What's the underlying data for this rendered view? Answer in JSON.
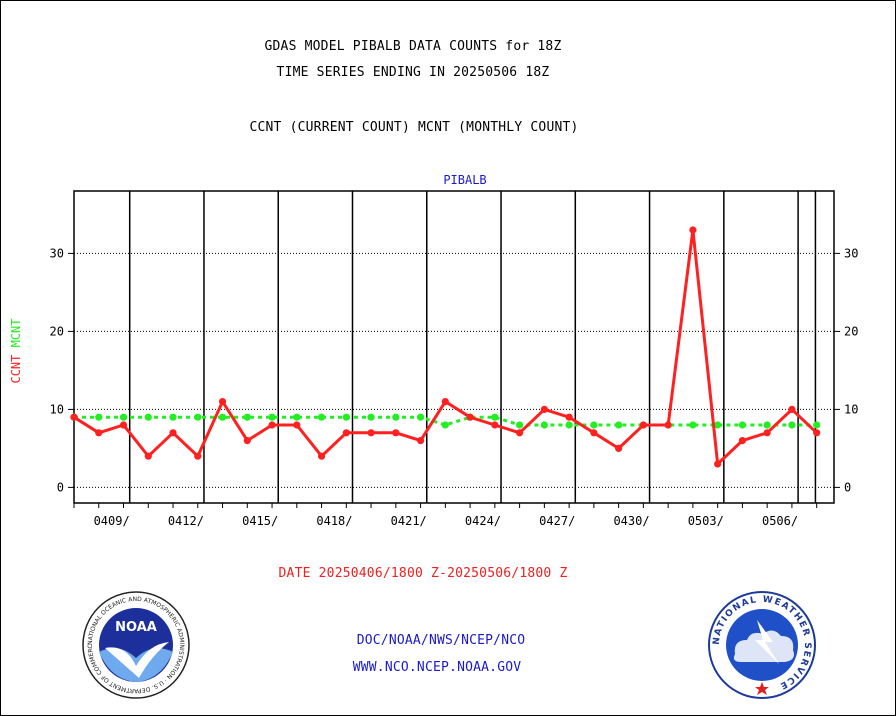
{
  "header": {
    "title1": "GDAS MODEL PIBALB DATA COUNTS for 18Z",
    "title2": "TIME SERIES ENDING IN 20250506 18Z",
    "subtitle": "CCNT (CURRENT COUNT) MCNT (MONTHLY COUNT)"
  },
  "footer": {
    "date_range": "DATE 20250406/1800 Z-20250506/1800 Z",
    "org_line": "DOC/NOAA/NWS/NCEP/NCO",
    "url_line": "WWW.NCO.NCEP.NOAA.GOV"
  },
  "logos": {
    "noaa": {
      "text": "NOAA",
      "ring_text": "NATIONAL OCEANIC AND ATMOSPHERIC ADMINISTRATION · U.S. DEPARTMENT OF COMMERCE"
    },
    "nws": {
      "ring_text": "NATIONAL WEATHER SERVICE"
    }
  },
  "colors": {
    "ccnt": "#ff2020",
    "mcnt": "#22ee22",
    "title": "#000000",
    "date": "#ee2020",
    "link": "#1a1acc",
    "plot_title": "#1a1acc"
  },
  "chart_data": {
    "type": "line",
    "title": "PIBALB",
    "ylabel_parts": [
      "CCNT",
      "MCNT"
    ],
    "ylim": [
      -2,
      38
    ],
    "yticks": [
      0,
      10,
      20,
      30
    ],
    "grid": true,
    "xlim": [
      0,
      30.7
    ],
    "x_tick_labels": [
      "0409/",
      "0412/",
      "0415/",
      "0418/",
      "0421/",
      "0424/",
      "0427/",
      "0430/",
      "0503/",
      "0506/"
    ],
    "x_tick_positions": [
      2.25,
      5.25,
      8.25,
      11.25,
      14.25,
      17.25,
      20.25,
      23.25,
      26.25,
      29.25
    ],
    "x_major_lines": [
      2.25,
      5.25,
      8.25,
      11.25,
      14.25,
      17.25,
      20.25,
      23.25,
      26.25,
      29.25,
      29.95
    ],
    "series": [
      {
        "name": "CCNT",
        "x": [
          0,
          1,
          2,
          3,
          4,
          5,
          6,
          7,
          8,
          9,
          10,
          11,
          12,
          13,
          14,
          15,
          16,
          17,
          18,
          19,
          20,
          21,
          22,
          23,
          24,
          25,
          26,
          27,
          28,
          29,
          30
        ],
        "values": [
          9,
          7,
          8,
          4,
          7,
          4,
          11,
          6,
          8,
          8,
          4,
          7,
          7,
          7,
          6,
          11,
          9,
          8,
          7,
          10,
          9,
          7,
          5,
          8,
          8,
          33,
          3,
          6,
          7,
          10,
          7
        ]
      },
      {
        "name": "MCNT",
        "x": [
          0,
          1,
          2,
          3,
          4,
          5,
          6,
          7,
          8,
          9,
          10,
          11,
          12,
          13,
          14,
          15,
          16,
          17,
          18,
          19,
          20,
          21,
          22,
          23,
          24,
          25,
          26,
          27,
          28,
          29,
          30
        ],
        "values": [
          9,
          9,
          9,
          9,
          9,
          9,
          9,
          9,
          9,
          9,
          9,
          9,
          9,
          9,
          9,
          8,
          9,
          9,
          8,
          8,
          8,
          8,
          8,
          8,
          8,
          8,
          8,
          8,
          8,
          8,
          8
        ]
      }
    ]
  }
}
